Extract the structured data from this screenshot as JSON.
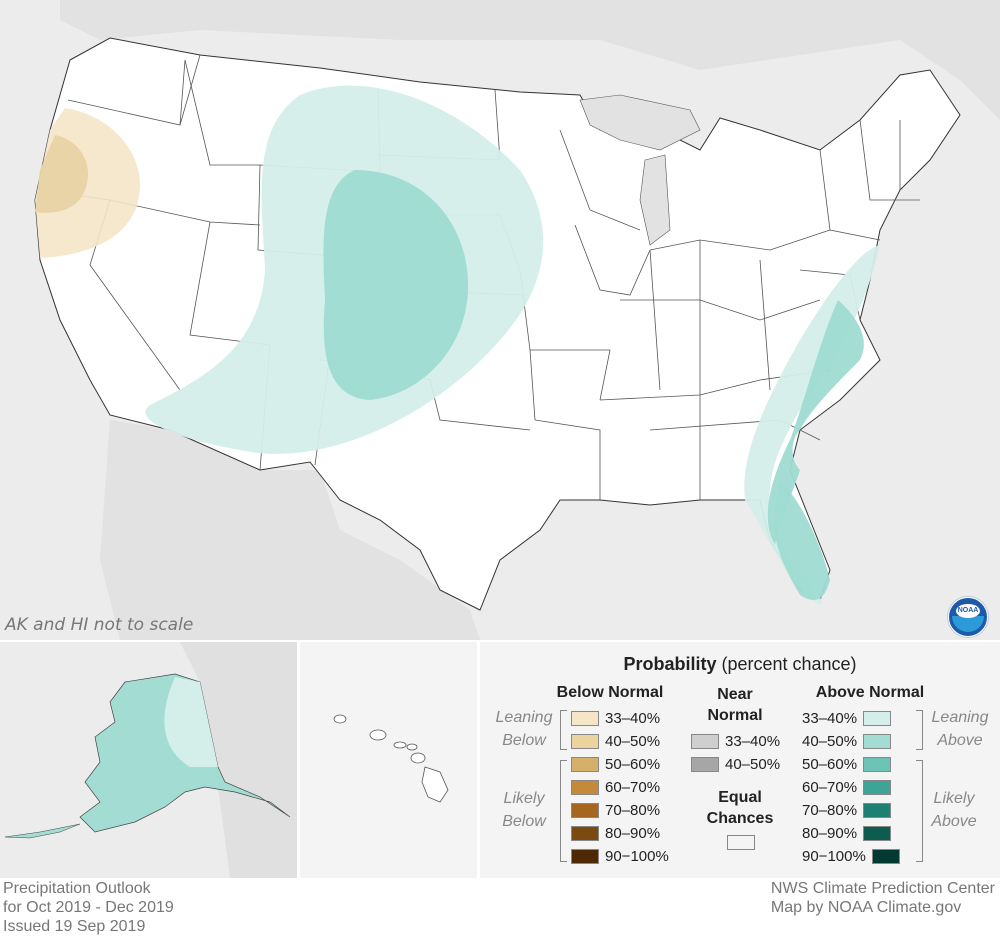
{
  "map": {
    "scale_note": "AK and HI not to scale",
    "logo_text": "NOAA",
    "colors": {
      "background": "#ececec",
      "land": "#ffffff",
      "below_33_40": "#f5e6c8",
      "below_40_50": "#e8d3a4",
      "above_33_40": "#d4eeea",
      "above_40_50": "#9fdbd2"
    }
  },
  "legend": {
    "title_bold": "Probability",
    "title_rest": "(percent chance)",
    "below_normal": {
      "heading": "Below Normal",
      "leaning_label": [
        "Leaning",
        "Below"
      ],
      "likely_label": [
        "Likely",
        "Below"
      ],
      "items": [
        {
          "label": "33–40%",
          "color": "#f5e6c8"
        },
        {
          "label": "40–50%",
          "color": "#ead39f"
        },
        {
          "label": "50–60%",
          "color": "#d5b06a"
        },
        {
          "label": "60–70%",
          "color": "#c48a3a"
        },
        {
          "label": "70–80%",
          "color": "#a5661f"
        },
        {
          "label": "80–90%",
          "color": "#7a4a10"
        },
        {
          "label": "90−100%",
          "color": "#4d2a05"
        }
      ]
    },
    "near_normal": {
      "heading": [
        "Near",
        "Normal"
      ],
      "items": [
        {
          "label": "33–40%",
          "color": "#cfcfcf"
        },
        {
          "label": "40–50%",
          "color": "#a6a6a6"
        }
      ]
    },
    "equal_chances": {
      "heading": [
        "Equal",
        "Chances"
      ],
      "color": "#ffffff"
    },
    "above_normal": {
      "heading": "Above Normal",
      "leaning_label": [
        "Leaning",
        "Above"
      ],
      "likely_label": [
        "Likely",
        "Above"
      ],
      "items": [
        {
          "label": "33–40%",
          "color": "#d4eeea"
        },
        {
          "label": "40–50%",
          "color": "#a2dcd3"
        },
        {
          "label": "50–60%",
          "color": "#6cc3b6"
        },
        {
          "label": "60–70%",
          "color": "#3ea497"
        },
        {
          "label": "70–80%",
          "color": "#1e7f73"
        },
        {
          "label": "80–90%",
          "color": "#0d5c50"
        },
        {
          "label": "90−100%",
          "color": "#023a31"
        }
      ]
    }
  },
  "footer": {
    "left": [
      "Precipitation Outlook",
      "for Oct 2019 - Dec 2019",
      "Issued 19 Sep 2019"
    ],
    "right": [
      "NWS Climate Prediction Center",
      "Map by NOAA Climate.gov"
    ]
  }
}
